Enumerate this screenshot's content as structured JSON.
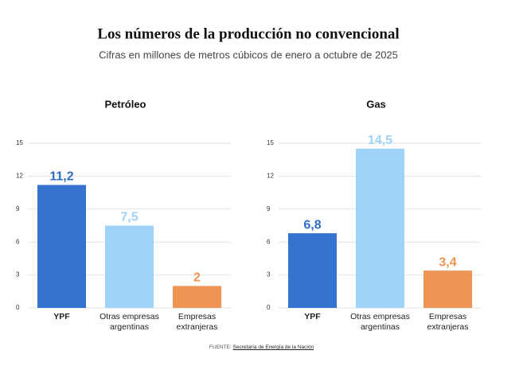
{
  "title": "Los números de la producción no convencional",
  "subtitle": "Cifras en millones de metros cúbicos de enero a octubre de 2025",
  "source_prefix": "FUENTE:",
  "source_link": "Secretaría de Energía de la Nación",
  "chart_data": [
    {
      "type": "bar",
      "title": "Petróleo",
      "categories": [
        "YPF",
        "Otras empresas argentinas",
        "Empresas extranjeras"
      ],
      "values": [
        11.2,
        7.5,
        2
      ],
      "value_labels": [
        "11,2",
        "7,5",
        "2"
      ],
      "colors": [
        "#3474d0",
        "#9fd3fa",
        "#ef9554"
      ],
      "ylim": [
        0,
        15
      ],
      "yticks": [
        0,
        3,
        6,
        9,
        12,
        15
      ],
      "grid": true
    },
    {
      "type": "bar",
      "title": "Gas",
      "categories": [
        "YPF",
        "Otras empresas argentinas",
        "Empresas extranjeras"
      ],
      "values": [
        6.8,
        14.5,
        3.4
      ],
      "value_labels": [
        "6,8",
        "14,5",
        "3,4"
      ],
      "colors": [
        "#3474d0",
        "#9fd3fa",
        "#ef9554"
      ],
      "ylim": [
        0,
        15
      ],
      "yticks": [
        0,
        3,
        6,
        9,
        12,
        15
      ],
      "grid": true
    }
  ]
}
